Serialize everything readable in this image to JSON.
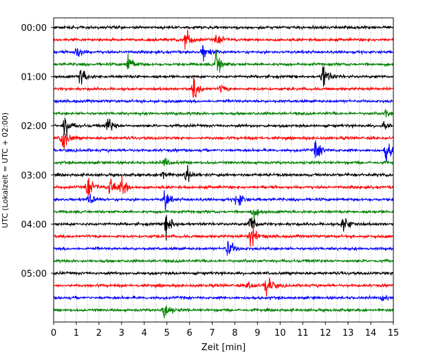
{
  "chart_data": {
    "type": "line",
    "title": "",
    "xlabel": "Zeit  [min]",
    "ylabel": "UTC (Lokalzeit = UTC + 02:00)",
    "xlim": [
      0,
      15
    ],
    "x_ticks": [
      0,
      1,
      2,
      3,
      4,
      5,
      6,
      7,
      8,
      9,
      10,
      11,
      12,
      13,
      14,
      15
    ],
    "x_minor_grid_step": 0.5,
    "grid": true,
    "y_ticks": [
      {
        "label": "00:00",
        "row": 0
      },
      {
        "label": "01:00",
        "row": 4
      },
      {
        "label": "02:00",
        "row": 8
      },
      {
        "label": "03:00",
        "row": 12
      },
      {
        "label": "04:00",
        "row": 16
      },
      {
        "label": "05:00",
        "row": 20
      }
    ],
    "trace_minutes": 15,
    "trace_colors": [
      "#000000",
      "#ff0000",
      "#0000ff",
      "#008000"
    ],
    "traces": [
      {
        "row": 0,
        "start": "00:00",
        "color": "#000000",
        "events": []
      },
      {
        "row": 1,
        "start": "00:15",
        "color": "#ff0000",
        "events": [
          {
            "t": 5.8,
            "amp": 2.8
          },
          {
            "t": 7.2,
            "amp": 1.2
          }
        ]
      },
      {
        "row": 2,
        "start": "00:30",
        "color": "#0000ff",
        "events": [
          {
            "t": 1.0,
            "amp": 1.6
          },
          {
            "t": 6.6,
            "amp": 1.8
          }
        ]
      },
      {
        "row": 3,
        "start": "00:45",
        "color": "#008000",
        "events": [
          {
            "t": 3.3,
            "amp": 2.5
          },
          {
            "t": 7.2,
            "amp": 3.2
          }
        ]
      },
      {
        "row": 4,
        "start": "01:00",
        "color": "#000000",
        "events": [
          {
            "t": 1.2,
            "amp": 2.2
          },
          {
            "t": 11.9,
            "amp": 3.0
          }
        ]
      },
      {
        "row": 5,
        "start": "01:15",
        "color": "#ff0000",
        "events": [
          {
            "t": 6.2,
            "amp": 2.6
          },
          {
            "t": 7.4,
            "amp": 0.8
          }
        ]
      },
      {
        "row": 6,
        "start": "01:30",
        "color": "#0000ff",
        "events": []
      },
      {
        "row": 7,
        "start": "01:45",
        "color": "#008000",
        "events": [
          {
            "t": 14.7,
            "amp": 0.9
          }
        ]
      },
      {
        "row": 8,
        "start": "02:00",
        "color": "#000000",
        "events": [
          {
            "t": 0.5,
            "amp": 2.6
          },
          {
            "t": 2.4,
            "amp": 2.0
          },
          {
            "t": 14.6,
            "amp": 0.8
          }
        ]
      },
      {
        "row": 9,
        "start": "02:15",
        "color": "#ff0000",
        "events": [
          {
            "t": 0.4,
            "amp": 3.0
          }
        ]
      },
      {
        "row": 10,
        "start": "02:30",
        "color": "#0000ff",
        "events": [
          {
            "t": 11.6,
            "amp": 2.4
          },
          {
            "t": 14.7,
            "amp": 2.6
          }
        ]
      },
      {
        "row": 11,
        "start": "02:45",
        "color": "#008000",
        "events": [
          {
            "t": 4.9,
            "amp": 1.0
          }
        ]
      },
      {
        "row": 12,
        "start": "03:00",
        "color": "#000000",
        "events": [
          {
            "t": 5.9,
            "amp": 2.2
          },
          {
            "t": 4.8,
            "amp": 1.2
          }
        ]
      },
      {
        "row": 13,
        "start": "03:15",
        "color": "#ff0000",
        "events": [
          {
            "t": 1.5,
            "amp": 2.6
          },
          {
            "t": 2.5,
            "amp": 2.2
          },
          {
            "t": 3.0,
            "amp": 2.4
          }
        ]
      },
      {
        "row": 14,
        "start": "03:30",
        "color": "#0000ff",
        "events": [
          {
            "t": 1.6,
            "amp": 1.4
          },
          {
            "t": 4.9,
            "amp": 2.4
          },
          {
            "t": 8.1,
            "amp": 2.2
          }
        ]
      },
      {
        "row": 15,
        "start": "03:45",
        "color": "#008000",
        "events": [
          {
            "t": 8.8,
            "amp": 1.2
          }
        ]
      },
      {
        "row": 16,
        "start": "04:00",
        "color": "#000000",
        "events": [
          {
            "t": 5.0,
            "amp": 2.6
          },
          {
            "t": 8.7,
            "amp": 2.2
          },
          {
            "t": 12.8,
            "amp": 2.0
          }
        ]
      },
      {
        "row": 17,
        "start": "04:15",
        "color": "#ff0000",
        "events": [
          {
            "t": 8.7,
            "amp": 2.8
          }
        ]
      },
      {
        "row": 18,
        "start": "04:30",
        "color": "#0000ff",
        "events": [
          {
            "t": 7.7,
            "amp": 2.4
          }
        ]
      },
      {
        "row": 19,
        "start": "04:45",
        "color": "#008000",
        "events": []
      },
      {
        "row": 20,
        "start": "05:00",
        "color": "#000000",
        "events": []
      },
      {
        "row": 21,
        "start": "05:15",
        "color": "#ff0000",
        "events": [
          {
            "t": 9.4,
            "amp": 2.8
          },
          {
            "t": 8.6,
            "amp": 1.0
          }
        ]
      },
      {
        "row": 22,
        "start": "05:30",
        "color": "#0000ff",
        "events": [
          {
            "t": 14.5,
            "amp": 0.8
          }
        ]
      },
      {
        "row": 23,
        "start": "05:45",
        "color": "#008000",
        "events": [
          {
            "t": 4.9,
            "amp": 2.2
          }
        ]
      }
    ]
  }
}
